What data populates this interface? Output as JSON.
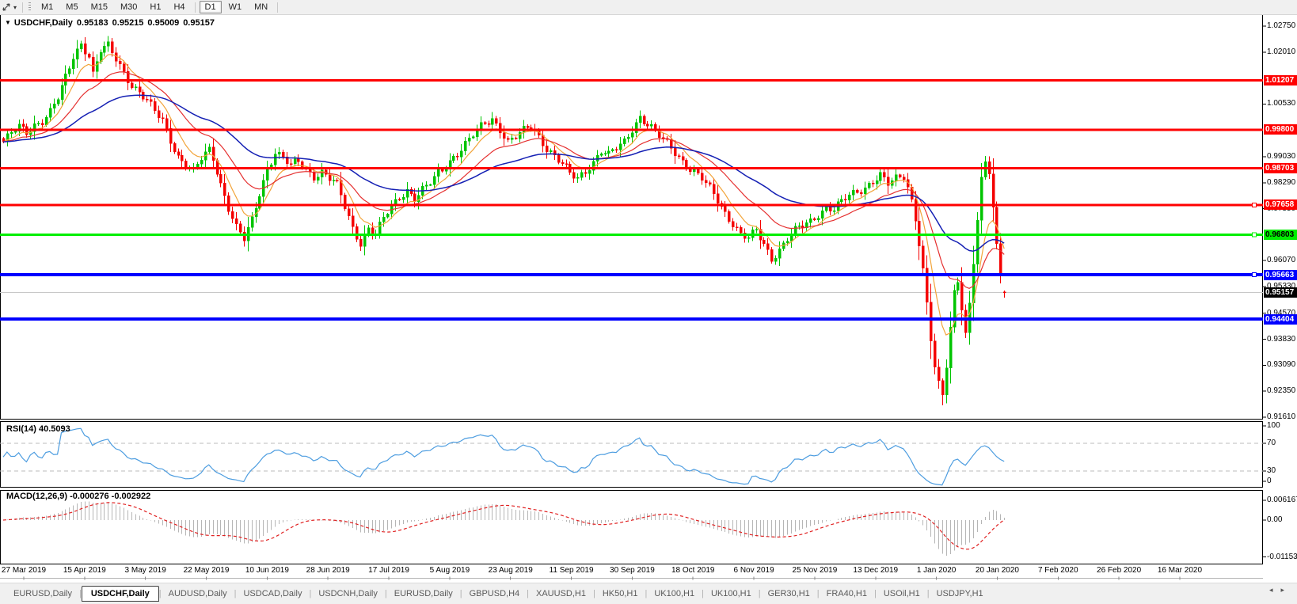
{
  "toolbar": {
    "timeframes": [
      "M1",
      "M5",
      "M15",
      "M30",
      "H1",
      "H4",
      "D1",
      "W1",
      "MN"
    ],
    "active_timeframe": "D1"
  },
  "icons": {
    "title_marker": "▼",
    "toolbar_dropdown": "▾",
    "tab_scroll_left": "◂",
    "tab_scroll_right": "▸"
  },
  "chart": {
    "title_symbol": "USDCHF,Daily",
    "ohlc": {
      "open": "0.95183",
      "high": "0.95215",
      "low": "0.95009",
      "close": "0.95157"
    }
  },
  "rsi": {
    "label": "RSI(14) 40.5093",
    "period": 14,
    "current_value": 40.5093,
    "axis_ticks": [
      "100",
      "70",
      "30",
      "0"
    ],
    "overbought": 70,
    "oversold": 30,
    "line_color": "#4d9de0"
  },
  "macd": {
    "label": "MACD(12,26,9) -0.000276 -0.002922",
    "fast": 12,
    "slow": 26,
    "signal_period": 9,
    "main_value": -0.000276,
    "signal_value": -0.002922,
    "axis_ticks": [
      "0.006167",
      "0.00",
      "-0.011531"
    ],
    "histogram_color": "#b6b6b6",
    "signal_color": "#e02020"
  },
  "tabs": {
    "items": [
      "EURUSD,Daily",
      "USDCHF,Daily",
      "AUDUSD,Daily",
      "USDCAD,Daily",
      "USDCNH,Daily",
      "EURUSD,Daily",
      "GBPUSD,H4",
      "XAUUSD,H1",
      "HK50,H1",
      "UK100,H1",
      "UK100,H1",
      "GER30,H1",
      "FRA40,H1",
      "USOil,H1",
      "USDJPY,H1"
    ],
    "active_index": 1
  },
  "chart_data": {
    "type": "candlestick",
    "symbol": "USDCHF",
    "timeframe": "Daily",
    "last_ohlc": {
      "open": 0.95183,
      "high": 0.95215,
      "low": 0.95009,
      "close": 0.95157
    },
    "price_axis_ticks": [
      "1.02750",
      "1.02010",
      "1.00530",
      "0.99030",
      "0.98290",
      "0.97550",
      "0.96070",
      "0.95330",
      "0.94570",
      "0.93830",
      "0.93090",
      "0.92350",
      "0.91610"
    ],
    "x_axis_dates": [
      "27 Mar 2019",
      "15 Apr 2019",
      "3 May 2019",
      "22 May 2019",
      "10 Jun 2019",
      "28 Jun 2019",
      "17 Jul 2019",
      "5 Aug 2019",
      "23 Aug 2019",
      "11 Sep 2019",
      "30 Sep 2019",
      "18 Oct 2019",
      "6 Nov 2019",
      "25 Nov 2019",
      "13 Dec 2019",
      "1 Jan 2020",
      "20 Jan 2020",
      "7 Feb 2020",
      "26 Feb 2020",
      "16 Mar 2020"
    ],
    "horizontal_levels": [
      {
        "price": 1.01207,
        "label": "1.01207",
        "color": "#ff0000",
        "width": 3,
        "badge_text": "#ffffff",
        "handle": false
      },
      {
        "price": 0.998,
        "label": "0.99800",
        "color": "#ff0000",
        "width": 3,
        "badge_text": "#ffffff",
        "handle": false
      },
      {
        "price": 0.98703,
        "label": "0.98703",
        "color": "#ff0000",
        "width": 3,
        "badge_text": "#ffffff",
        "handle": false
      },
      {
        "price": 0.97658,
        "label": "0.97658",
        "color": "#ff0000",
        "width": 3,
        "badge_text": "#ffffff",
        "handle": true
      },
      {
        "price": 0.96803,
        "label": "0.96803",
        "color": "#00ee00",
        "width": 3,
        "badge_text": "#000000",
        "handle": true
      },
      {
        "price": 0.95663,
        "label": "0.95663",
        "color": "#0000ff",
        "width": 4,
        "badge_text": "#ffffff",
        "handle": true
      },
      {
        "price": 0.94404,
        "label": "0.94404",
        "color": "#0000ff",
        "width": 4,
        "badge_text": "#ffffff",
        "handle": false
      }
    ],
    "current_price": {
      "value": 0.95157,
      "label": "0.95157",
      "line_color": "#c8c8c8",
      "badge_bg": "#000000",
      "badge_text": "#ffffff"
    },
    "candle_colors": {
      "bull": "#00c400",
      "bear": "#f40000"
    },
    "moving_averages": [
      {
        "period": 8,
        "color": "#f2a43a",
        "width": 1.2
      },
      {
        "period": 21,
        "color": "#e53030",
        "width": 1.2
      },
      {
        "period": 50,
        "color": "#1520b4",
        "width": 1.5
      }
    ],
    "candle_count": 259,
    "close_anchors": [
      [
        0,
        0.9945
      ],
      [
        2,
        0.9968
      ],
      [
        4,
        0.9985
      ],
      [
        6,
        0.9972
      ],
      [
        8,
        0.9996
      ],
      [
        10,
        1.0008
      ],
      [
        12,
        1.0032
      ],
      [
        14,
        1.0068
      ],
      [
        16,
        1.0125
      ],
      [
        18,
        1.0188
      ],
      [
        20,
        1.0226
      ],
      [
        22,
        1.0195
      ],
      [
        23,
        1.014
      ],
      [
        25,
        1.0205
      ],
      [
        27,
        1.0215
      ],
      [
        29,
        1.018
      ],
      [
        31,
        1.0145
      ],
      [
        33,
        1.011
      ],
      [
        35,
        1.0088
      ],
      [
        37,
        1.006
      ],
      [
        39,
        1.003
      ],
      [
        41,
        1.0005
      ],
      [
        43,
        0.9952
      ],
      [
        45,
        0.9905
      ],
      [
        47,
        0.988
      ],
      [
        49,
        0.9858
      ],
      [
        51,
        0.9895
      ],
      [
        53,
        0.9922
      ],
      [
        54,
        0.99
      ],
      [
        56,
        0.9828
      ],
      [
        58,
        0.976
      ],
      [
        60,
        0.97
      ],
      [
        62,
        0.9665
      ],
      [
        64,
        0.972
      ],
      [
        66,
        0.98
      ],
      [
        68,
        0.987
      ],
      [
        70,
        0.9918
      ],
      [
        72,
        0.9898
      ],
      [
        74,
        0.9875
      ],
      [
        76,
        0.9888
      ],
      [
        78,
        0.9868
      ],
      [
        80,
        0.985
      ],
      [
        82,
        0.986
      ],
      [
        84,
        0.984
      ],
      [
        86,
        0.982
      ],
      [
        88,
        0.976
      ],
      [
        90,
        0.97
      ],
      [
        92,
        0.966
      ],
      [
        94,
        0.97
      ],
      [
        96,
        0.968
      ],
      [
        98,
        0.9725
      ],
      [
        100,
        0.976
      ],
      [
        102,
        0.979
      ],
      [
        104,
        0.981
      ],
      [
        106,
        0.9785
      ],
      [
        108,
        0.9805
      ],
      [
        110,
        0.9825
      ],
      [
        112,
        0.9855
      ],
      [
        114,
        0.988
      ],
      [
        116,
        0.9905
      ],
      [
        118,
        0.9925
      ],
      [
        120,
        0.995
      ],
      [
        122,
        0.9975
      ],
      [
        124,
        0.9998
      ],
      [
        126,
        1.0012
      ],
      [
        128,
        0.9985
      ],
      [
        130,
        0.9945
      ],
      [
        132,
        0.9958
      ],
      [
        134,
        0.9975
      ],
      [
        136,
        0.999
      ],
      [
        138,
        0.9962
      ],
      [
        140,
        0.993
      ],
      [
        142,
        0.9905
      ],
      [
        144,
        0.988
      ],
      [
        146,
        0.9852
      ],
      [
        148,
        0.984
      ],
      [
        150,
        0.9865
      ],
      [
        152,
        0.989
      ],
      [
        154,
        0.992
      ],
      [
        156,
        0.9905
      ],
      [
        158,
        0.9925
      ],
      [
        160,
        0.9945
      ],
      [
        162,
        0.9985
      ],
      [
        164,
        1.0018
      ],
      [
        166,
        0.9995
      ],
      [
        168,
        0.997
      ],
      [
        170,
        0.995
      ],
      [
        172,
        0.993
      ],
      [
        174,
        0.9905
      ],
      [
        176,
        0.988
      ],
      [
        178,
        0.9858
      ],
      [
        180,
        0.9838
      ],
      [
        182,
        0.981
      ],
      [
        184,
        0.978
      ],
      [
        186,
        0.9745
      ],
      [
        188,
        0.9715
      ],
      [
        190,
        0.968
      ],
      [
        192,
        0.9668
      ],
      [
        194,
        0.969
      ],
      [
        196,
        0.9655
      ],
      [
        198,
        0.9615
      ],
      [
        200,
        0.964
      ],
      [
        202,
        0.9668
      ],
      [
        204,
        0.969
      ],
      [
        206,
        0.9705
      ],
      [
        208,
        0.972
      ],
      [
        210,
        0.9742
      ],
      [
        212,
        0.976
      ],
      [
        214,
        0.9752
      ],
      [
        216,
        0.9772
      ],
      [
        218,
        0.979
      ],
      [
        220,
        0.9805
      ],
      [
        222,
        0.9818
      ],
      [
        224,
        0.9835
      ],
      [
        226,
        0.9848
      ],
      [
        228,
        0.9822
      ],
      [
        230,
        0.9838
      ],
      [
        232,
        0.985
      ],
      [
        233,
        0.982
      ],
      [
        234,
        0.978
      ],
      [
        235,
        0.973
      ],
      [
        236,
        0.966
      ],
      [
        237,
        0.958
      ],
      [
        238,
        0.948
      ],
      [
        239,
        0.938
      ],
      [
        240,
        0.93
      ],
      [
        241,
        0.925
      ],
      [
        242,
        0.922
      ],
      [
        243,
        0.931
      ],
      [
        244,
        0.942
      ],
      [
        245,
        0.952
      ],
      [
        246,
        0.9555
      ],
      [
        247,
        0.948
      ],
      [
        248,
        0.94
      ],
      [
        249,
        0.948
      ],
      [
        250,
        0.96
      ],
      [
        251,
        0.972
      ],
      [
        252,
        0.983
      ],
      [
        253,
        0.988
      ],
      [
        254,
        0.986
      ],
      [
        255,
        0.976
      ],
      [
        256,
        0.965
      ],
      [
        257,
        0.958
      ],
      [
        258,
        0.9518
      ]
    ],
    "low_wick_overrides": {
      "242": 0.9195
    },
    "high_wick_overrides": {
      "253": 0.9905
    }
  }
}
